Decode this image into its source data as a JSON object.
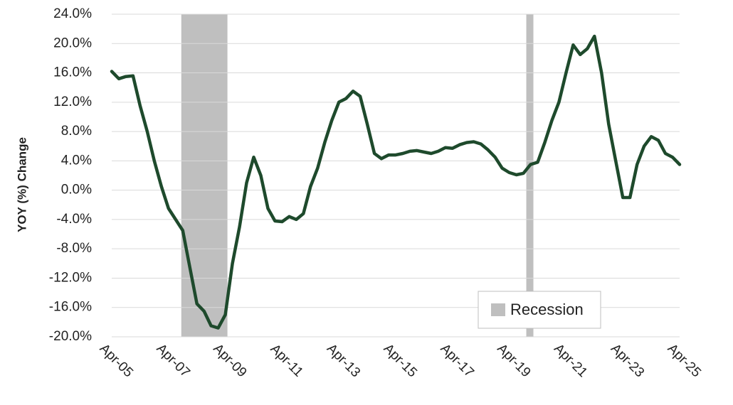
{
  "chart_data": {
    "type": "line",
    "y_label": "YOY (%) Change",
    "categories": [
      "Apr-05",
      null,
      null,
      null,
      null,
      null,
      null,
      null,
      "Apr-07",
      null,
      null,
      null,
      null,
      null,
      null,
      null,
      "Apr-09",
      null,
      null,
      null,
      null,
      null,
      null,
      null,
      "Apr-11",
      null,
      null,
      null,
      null,
      null,
      null,
      null,
      "Apr-13",
      null,
      null,
      null,
      null,
      null,
      null,
      null,
      "Apr-15",
      null,
      null,
      null,
      null,
      null,
      null,
      null,
      "Apr-17",
      null,
      null,
      null,
      null,
      null,
      null,
      null,
      "Apr-19",
      null,
      null,
      null,
      null,
      null,
      null,
      null,
      "Apr-21",
      null,
      null,
      null,
      null,
      null,
      null,
      null,
      "Apr-23",
      null,
      null,
      null,
      null,
      null,
      null,
      null,
      "Apr-25"
    ],
    "series": [
      {
        "name": "YOY (%) Change",
        "color": "#1e4a2c",
        "values": [
          16.2,
          15.2,
          15.5,
          15.6,
          11.5,
          8,
          4,
          0.5,
          -2.5,
          -4,
          -5.5,
          -10.5,
          -15.5,
          -16.5,
          -18.5,
          -18.8,
          -17,
          -10,
          -5,
          1,
          4.5,
          2,
          -2.5,
          -4.2,
          -4.3,
          -3.6,
          -4,
          -3.2,
          0.5,
          3,
          6.5,
          9.5,
          12,
          12.5,
          13.5,
          12.8,
          9,
          5,
          4.3,
          4.8,
          4.8,
          5,
          5.3,
          5.4,
          5.2,
          5,
          5.3,
          5.8,
          5.7,
          6.2,
          6.5,
          6.6,
          6.3,
          5.5,
          4.5,
          3,
          2.4,
          2.1,
          2.3,
          3.5,
          3.8,
          6.5,
          9.5,
          12,
          16,
          19.8,
          18.5,
          19.3,
          21,
          16,
          9,
          4,
          -1,
          -1,
          3.5,
          6,
          7.3,
          6.8,
          5,
          4.5,
          3.5
        ]
      }
    ],
    "shading": {
      "name": "Recession",
      "color": "#bfbfbf",
      "ranges": [
        [
          9.8,
          16.3
        ],
        [
          58.4,
          59.4
        ]
      ]
    },
    "ylim": [
      -20,
      24
    ],
    "yticks": [
      {
        "value": -20,
        "label": "-20.0%"
      },
      {
        "value": -16,
        "label": "-16.0%"
      },
      {
        "value": -12,
        "label": "-12.0%"
      },
      {
        "value": -8,
        "label": "-8.0%"
      },
      {
        "value": -4,
        "label": "-4.0%"
      },
      {
        "value": 0,
        "label": "0.0%"
      },
      {
        "value": 4,
        "label": "4.0%"
      },
      {
        "value": 8,
        "label": "8.0%"
      },
      {
        "value": 12,
        "label": "12.0%"
      },
      {
        "value": 16,
        "label": "16.0%"
      },
      {
        "value": 20,
        "label": "20.0%"
      },
      {
        "value": 24,
        "label": "24.0%"
      }
    ],
    "grid": true
  }
}
